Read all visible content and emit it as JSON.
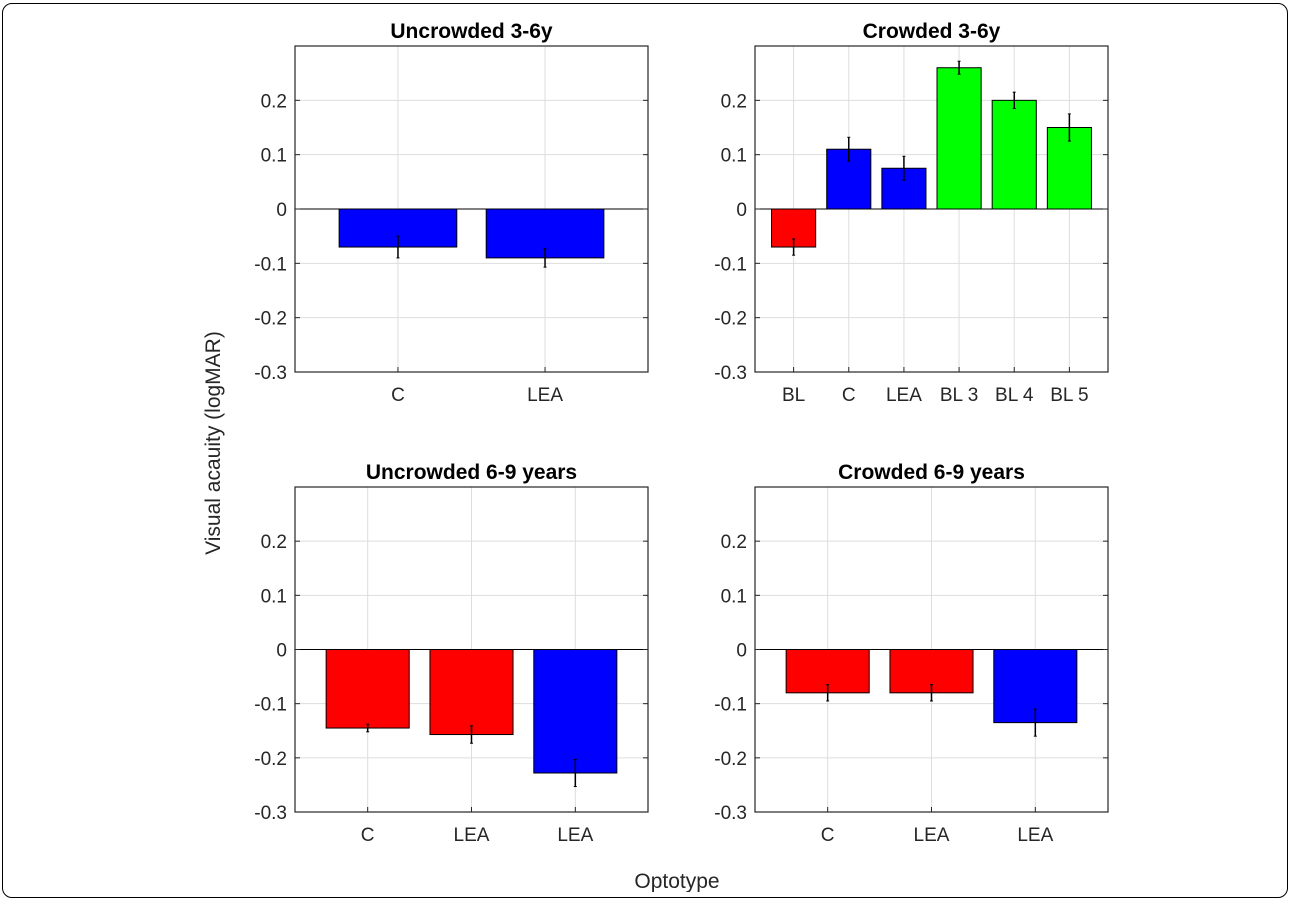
{
  "ylabel": "Visual acauity (logMAR)",
  "xlabel": "Optotype",
  "colors": {
    "red": "#ff0000",
    "blue": "#0000ff",
    "green": "#00ff00"
  },
  "chart_data": [
    {
      "type": "bar",
      "title": "Uncrowded 3-6y",
      "ylim": [
        -0.3,
        0.3
      ],
      "yticks": [
        "0.2",
        "0.1",
        "0",
        "-0.1",
        "-0.2",
        "-0.3"
      ],
      "grid": true,
      "categories": [
        "C",
        "LEA"
      ],
      "values": [
        -0.07,
        -0.09
      ],
      "errors": [
        0.02,
        0.017
      ],
      "colors": [
        "blue",
        "blue"
      ]
    },
    {
      "type": "bar",
      "title": "Crowded 3-6y",
      "ylim": [
        -0.3,
        0.3
      ],
      "yticks": [
        "0.2",
        "0.1",
        "0",
        "-0.1",
        "-0.2",
        "-0.3"
      ],
      "grid": true,
      "categories": [
        "BL",
        "C",
        "LEA",
        "BL 3",
        "BL 4",
        "BL 5"
      ],
      "values": [
        -0.07,
        0.11,
        0.075,
        0.26,
        0.2,
        0.15
      ],
      "errors": [
        0.015,
        0.022,
        0.022,
        0.012,
        0.015,
        0.025
      ],
      "colors": [
        "red",
        "blue",
        "blue",
        "green",
        "green",
        "green"
      ]
    },
    {
      "type": "bar",
      "title": "Uncrowded 6-9 years",
      "ylim": [
        -0.3,
        0.3
      ],
      "yticks": [
        "0.2",
        "0.1",
        "0",
        "-0.1",
        "-0.2",
        "-0.3"
      ],
      "grid": true,
      "categories": [
        "C",
        "LEA",
        "LEA"
      ],
      "values": [
        -0.145,
        -0.157,
        -0.228
      ],
      "errors": [
        0.007,
        0.016,
        0.025
      ],
      "colors": [
        "red",
        "red",
        "blue"
      ]
    },
    {
      "type": "bar",
      "title": "Crowded 6-9 years",
      "ylim": [
        -0.3,
        0.3
      ],
      "yticks": [
        "0.2",
        "0.1",
        "0",
        "-0.1",
        "-0.2",
        "-0.3"
      ],
      "grid": true,
      "categories": [
        "C",
        "LEA",
        "LEA"
      ],
      "values": [
        -0.08,
        -0.08,
        -0.135
      ],
      "errors": [
        0.015,
        0.015,
        0.025
      ],
      "colors": [
        "red",
        "red",
        "blue"
      ]
    }
  ]
}
